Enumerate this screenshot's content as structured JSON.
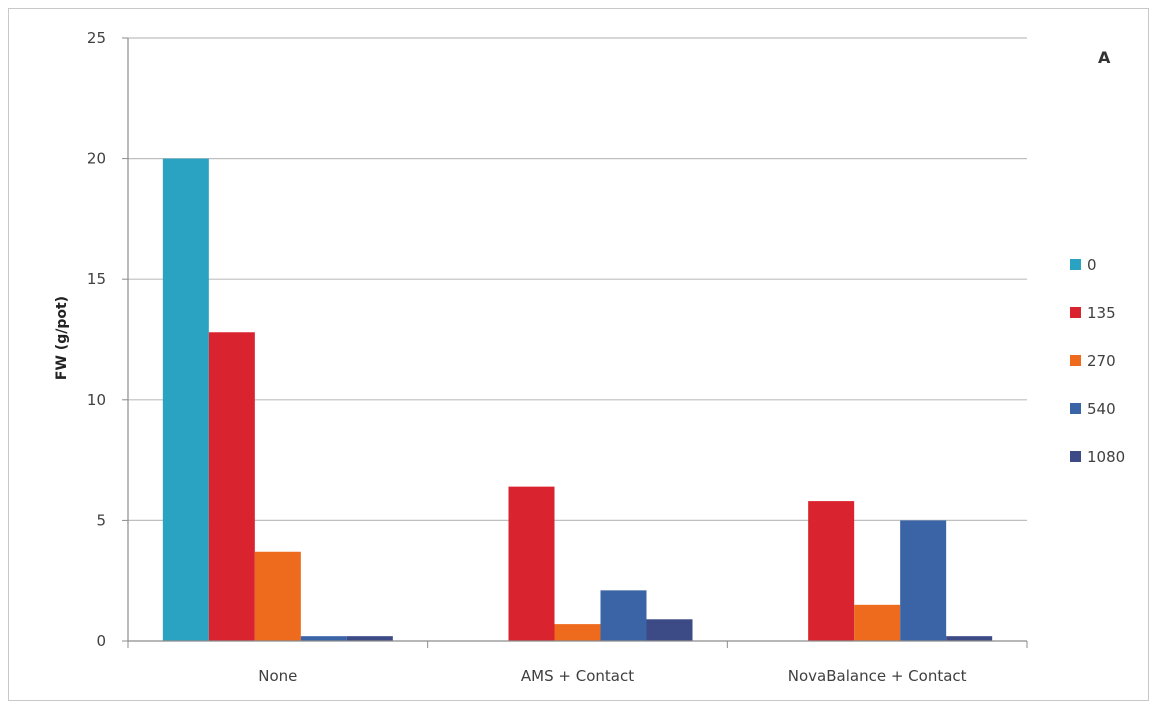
{
  "chart_data": {
    "type": "bar",
    "panel_label": "A",
    "ylabel": "FW (g/pot)",
    "xlabel": "",
    "ylim": [
      0,
      25
    ],
    "yticks": [
      0,
      5,
      10,
      15,
      20,
      25
    ],
    "grid": true,
    "legend_position": "right",
    "categories": [
      "None",
      "AMS + Contact",
      "NovaBalance + Contact"
    ],
    "series": [
      {
        "name": "0",
        "color": "#2aa3c3",
        "values": [
          20.0,
          0,
          0
        ]
      },
      {
        "name": "135",
        "color": "#d9232e",
        "values": [
          12.8,
          6.4,
          5.8
        ]
      },
      {
        "name": "270",
        "color": "#ee6a1c",
        "values": [
          3.7,
          0.7,
          1.5
        ]
      },
      {
        "name": "540",
        "color": "#3a64a6",
        "values": [
          0.2,
          2.1,
          5.0
        ]
      },
      {
        "name": "1080",
        "color": "#3c4a86",
        "values": [
          0.2,
          0.9,
          0.2
        ]
      }
    ]
  }
}
